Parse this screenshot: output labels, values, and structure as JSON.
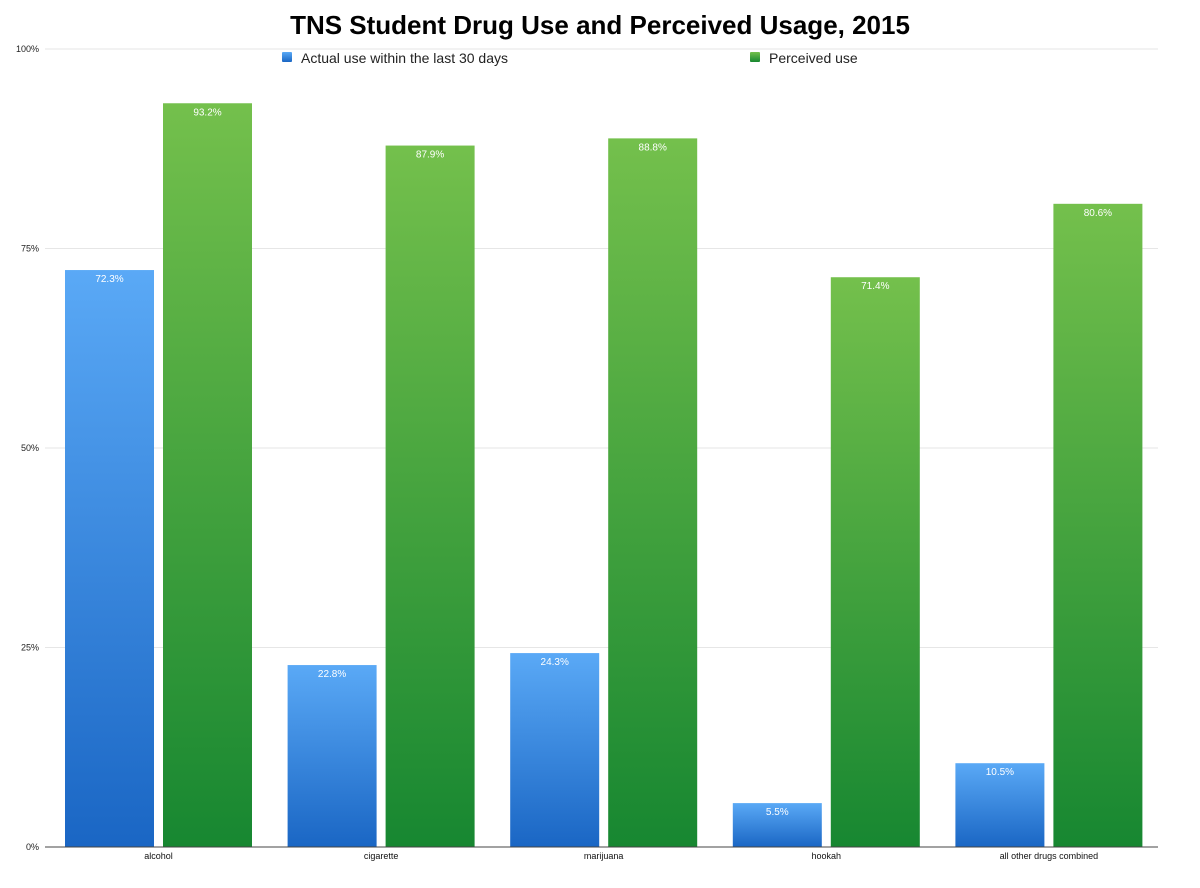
{
  "chart_data": {
    "type": "bar",
    "title": "TNS Student Drug Use and Perceived Usage, 2015",
    "categories": [
      "alcohol",
      "cigarette",
      "marijuana",
      "hookah",
      "all other drugs combined"
    ],
    "series": [
      {
        "name": "Actual use within the last 30 days",
        "values": [
          72.3,
          22.8,
          24.3,
          5.5,
          10.5
        ],
        "labels": [
          "72.3%",
          "22.8%",
          "24.3%",
          "5.5%",
          "10.5%"
        ],
        "color_top": "#5aa9f6",
        "color_bottom": "#1a66c4"
      },
      {
        "name": "Perceived use",
        "values": [
          93.2,
          87.9,
          88.8,
          71.4,
          80.6
        ],
        "labels": [
          "93.2%",
          "87.9%",
          "88.8%",
          "71.4%",
          "80.6%"
        ],
        "color_top": "#74c04c",
        "color_bottom": "#178731"
      }
    ],
    "yticks": [
      {
        "value": 0,
        "label": "0%"
      },
      {
        "value": 25,
        "label": "25%"
      },
      {
        "value": 50,
        "label": "50%"
      },
      {
        "value": 75,
        "label": "75%"
      },
      {
        "value": 100,
        "label": "100%"
      }
    ],
    "ylim": [
      0,
      100
    ],
    "grid": true,
    "legend_position": "top"
  }
}
